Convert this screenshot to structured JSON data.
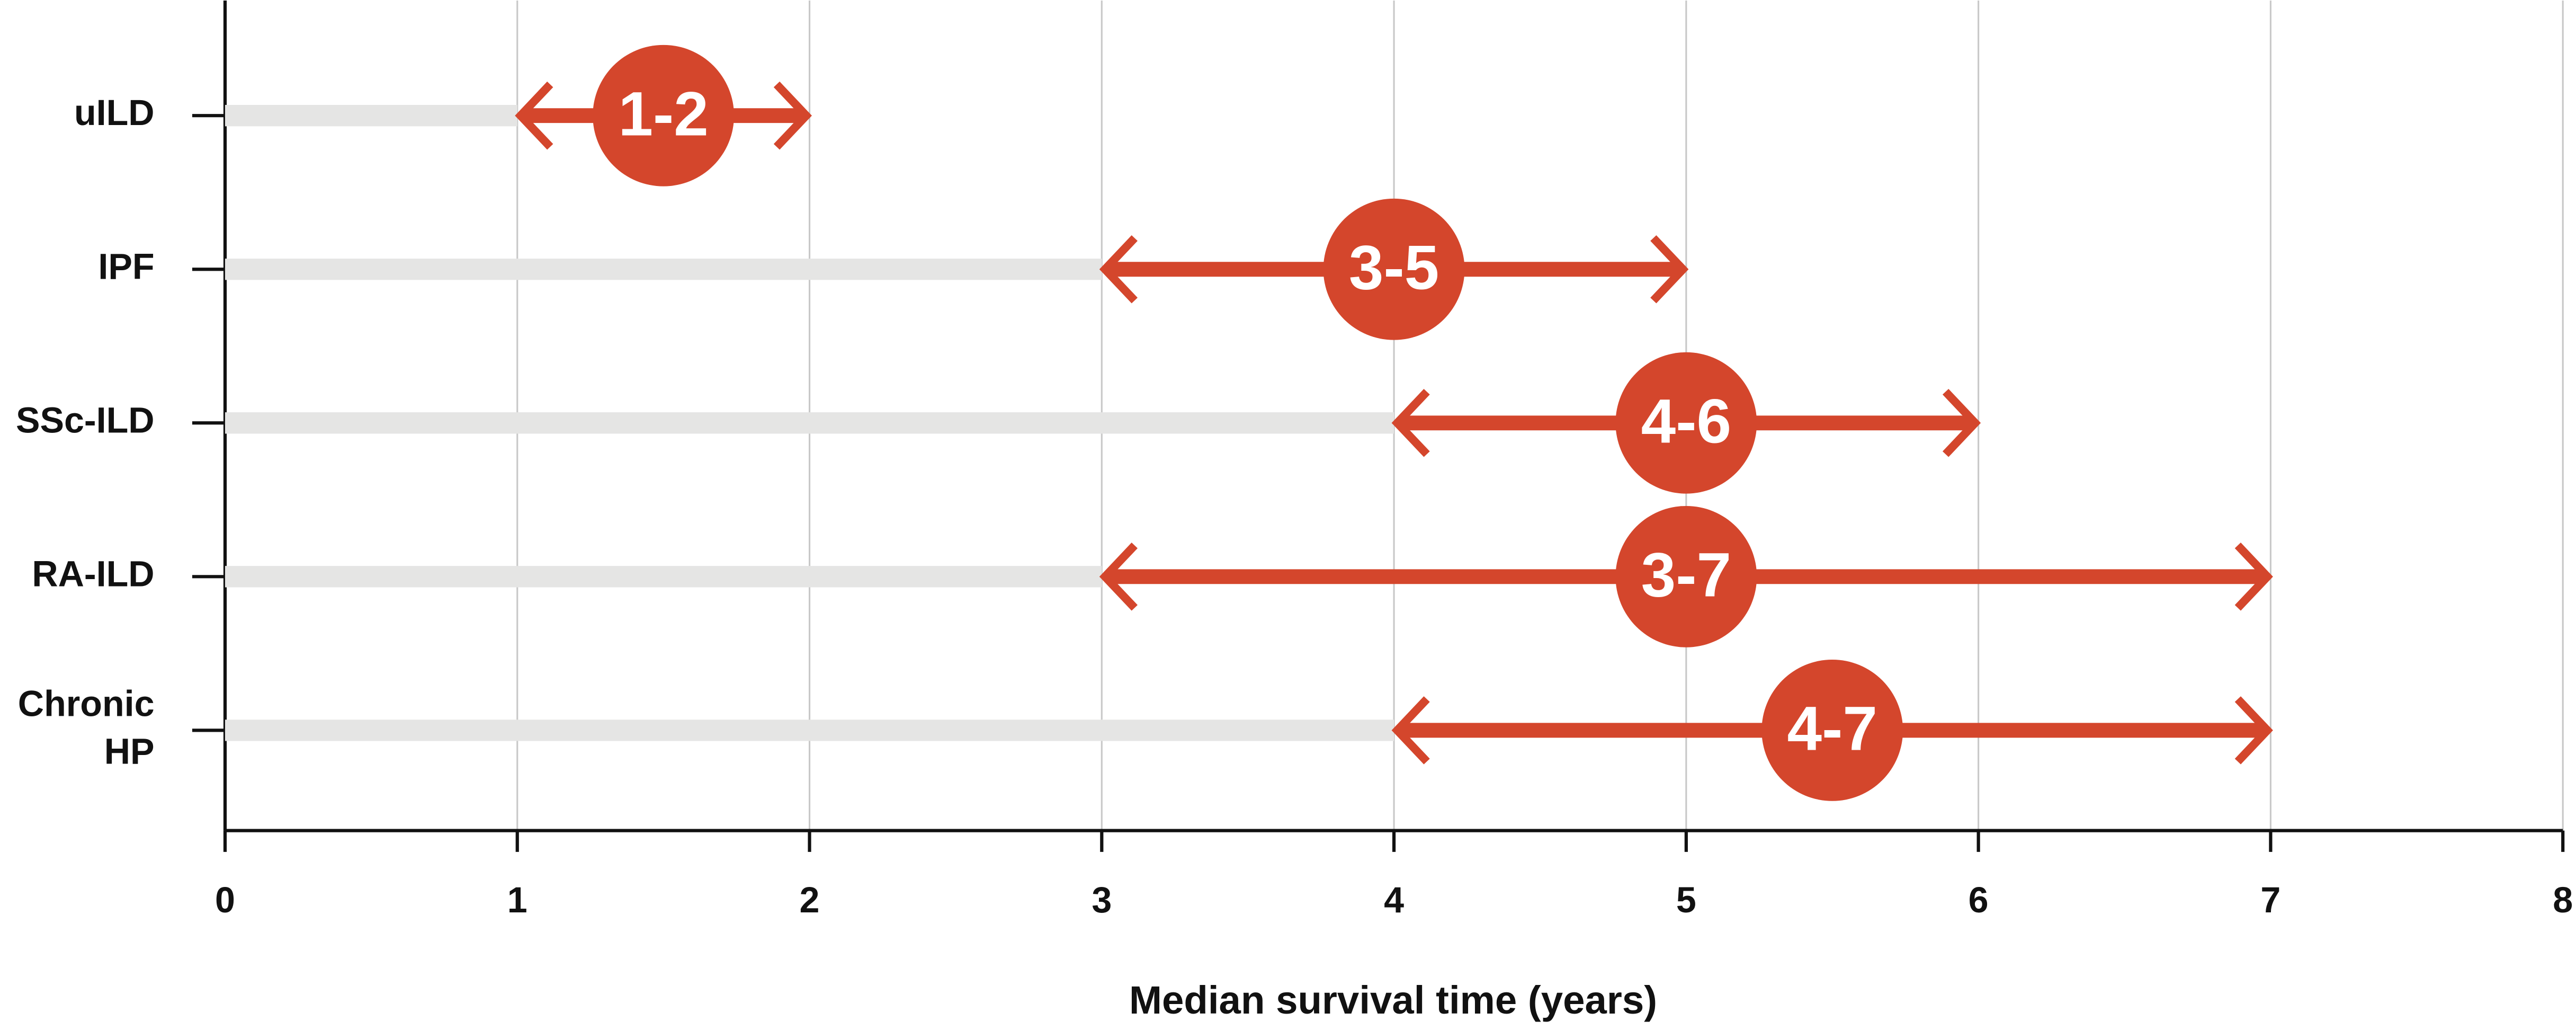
{
  "chart_data": {
    "type": "range",
    "x_label": "Median survival time (years)",
    "categories": [
      "uILD",
      "IPF",
      "SSc-ILD",
      "RA-ILD",
      "Chronic HP"
    ],
    "low": [
      1,
      3,
      4,
      3,
      4
    ],
    "high": [
      2,
      5,
      6,
      7,
      7
    ],
    "value_labels": [
      "1-2",
      "3-5",
      "4-6",
      "3-7",
      "4-7"
    ],
    "color": "#d4462c",
    "baseline_color": "#e5e5e4",
    "xlim": [
      0,
      8
    ],
    "xticks": [
      0,
      1,
      2,
      3,
      4,
      5,
      6,
      7,
      8
    ],
    "grid": true
  }
}
